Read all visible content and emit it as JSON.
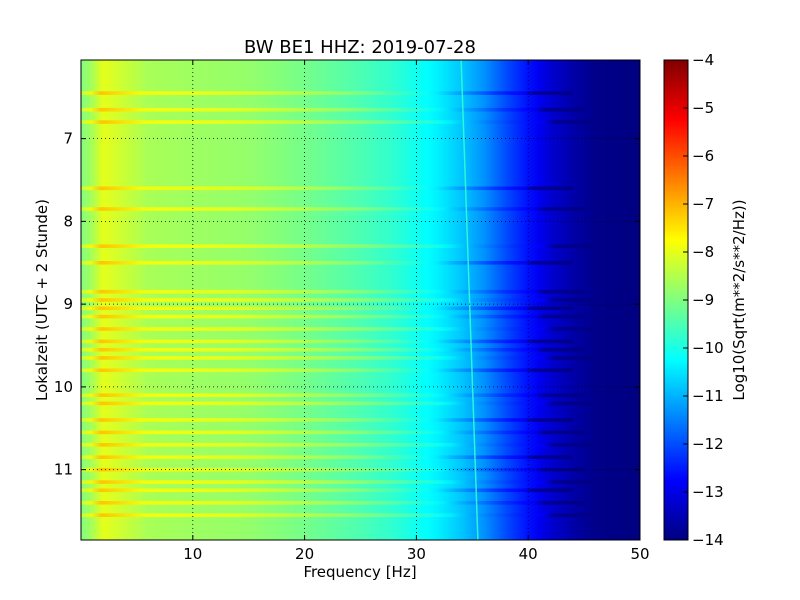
{
  "chart_data": {
    "type": "heatmap",
    "title": "BW BE1 HHZ: 2019-07-28",
    "xlabel": "Frequency [Hz]",
    "ylabel": "Lokalzeit (UTC + 2 Stunde)",
    "xlim": [
      0,
      50
    ],
    "ylim": [
      11.85,
      6.05
    ],
    "y_inverted": true,
    "xticks": [
      10,
      20,
      30,
      40,
      50
    ],
    "yticks": [
      7,
      8,
      9,
      10,
      11
    ],
    "grid": true,
    "colorscale": "jet",
    "colorbar": {
      "label": "Log10(Sqrt(m**2/s**2/Hz))",
      "range": [
        -14,
        -4
      ],
      "ticks": [
        -14,
        -13,
        -12,
        -11,
        -10,
        -9,
        -8,
        -7,
        -6,
        -5,
        -4
      ]
    },
    "spectrum_profile": {
      "frequency_hz": [
        0,
        1,
        2,
        4,
        6,
        10,
        15,
        20,
        25,
        28,
        30,
        32,
        34,
        36,
        38,
        40,
        42,
        44,
        46,
        50
      ],
      "log10_psd": [
        -9.0,
        -8.6,
        -8.0,
        -8.3,
        -8.6,
        -8.7,
        -8.8,
        -9.1,
        -9.5,
        -9.8,
        -10.1,
        -10.4,
        -10.8,
        -11.3,
        -12.0,
        -12.6,
        -13.2,
        -13.6,
        -13.9,
        -14.0
      ]
    },
    "spectral_line_hz": [
      34.0,
      35.5
    ],
    "bright_time_bands": [
      6.45,
      6.65,
      6.8,
      7.6,
      7.85,
      8.3,
      8.5,
      8.85,
      8.95,
      9.05,
      9.15,
      9.3,
      9.45,
      9.55,
      9.65,
      9.8,
      10.1,
      10.2,
      10.4,
      10.55,
      10.7,
      10.85,
      11.0,
      11.15,
      11.25,
      11.4,
      11.55
    ]
  }
}
